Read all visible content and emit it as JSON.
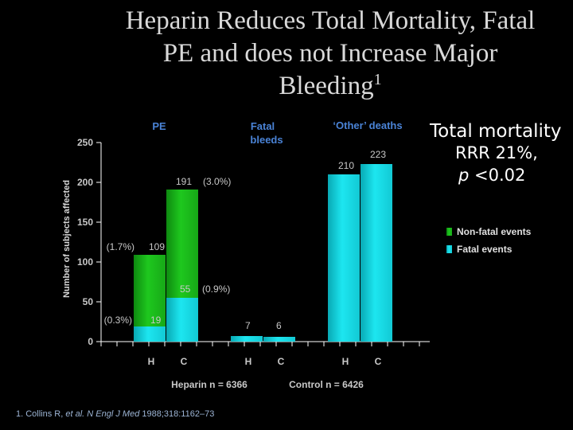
{
  "slide": {
    "title_line1": "Heparin Reduces Total Mortality, Fatal",
    "title_line2": "PE and does not Increase Major",
    "title_line3": "Bleeding",
    "title_sup": "1",
    "total_mortality_label": "Total mortality",
    "rrr_label": "RRR 21%,",
    "p_symbol": "p",
    "p_value": "<0.02",
    "footnote_prefix": "1. Collins R, ",
    "footnote_etal": "et al.",
    "footnote_journal": "N Engl J Med",
    "footnote_ref": "1988;318:1162–73"
  },
  "colors": {
    "background": "#000000",
    "nonfatal": "#1ec81e",
    "fatal": "#1de6f0",
    "header_blue": "#4a83d6",
    "axis": "#ffffff",
    "label": "#c8c8c8"
  },
  "chart_data": {
    "type": "bar",
    "stacked": true,
    "ylabel": "Number of subjects affected",
    "ylim": [
      0,
      250
    ],
    "yticks": [
      0,
      50,
      100,
      150,
      200,
      250
    ],
    "categories": [
      "H",
      "C",
      "H",
      "C",
      "H",
      "C"
    ],
    "groups": [
      {
        "name": "PE",
        "bars": [
          0,
          1
        ]
      },
      {
        "name": "Fatal bleeds",
        "bars": [
          2,
          3
        ]
      },
      {
        "name": "'Other' deaths",
        "bars": [
          4,
          5
        ]
      }
    ],
    "group_headers": [
      {
        "text": "PE",
        "bars": [
          0,
          1
        ]
      },
      {
        "text": "Fatal",
        "text2": "bleeds",
        "bars": [
          2,
          3
        ]
      },
      {
        "text": "‘Other’ deaths",
        "bars": [
          4,
          5
        ]
      }
    ],
    "series": [
      {
        "name": "Fatal events",
        "values": [
          19,
          55,
          7,
          6,
          210,
          223
        ]
      },
      {
        "name": "Non-fatal events",
        "values": [
          90,
          136,
          0,
          0,
          0,
          0
        ]
      }
    ],
    "totals": [
      109,
      191,
      7,
      6,
      210,
      223
    ],
    "bar_labels": [
      "19",
      "55",
      "7",
      "6",
      "210",
      "223",
      "109",
      "191"
    ],
    "percent_labels": [
      "(0.3%)",
      "(0.9%)",
      "(1.7%)",
      "(3.0%)"
    ],
    "legend": [
      {
        "name": "Non-fatal events"
      },
      {
        "name": "Fatal events"
      }
    ],
    "group_sizes": [
      {
        "text": "Heparin n = 6366"
      },
      {
        "text": "Control n = 6426"
      }
    ]
  }
}
